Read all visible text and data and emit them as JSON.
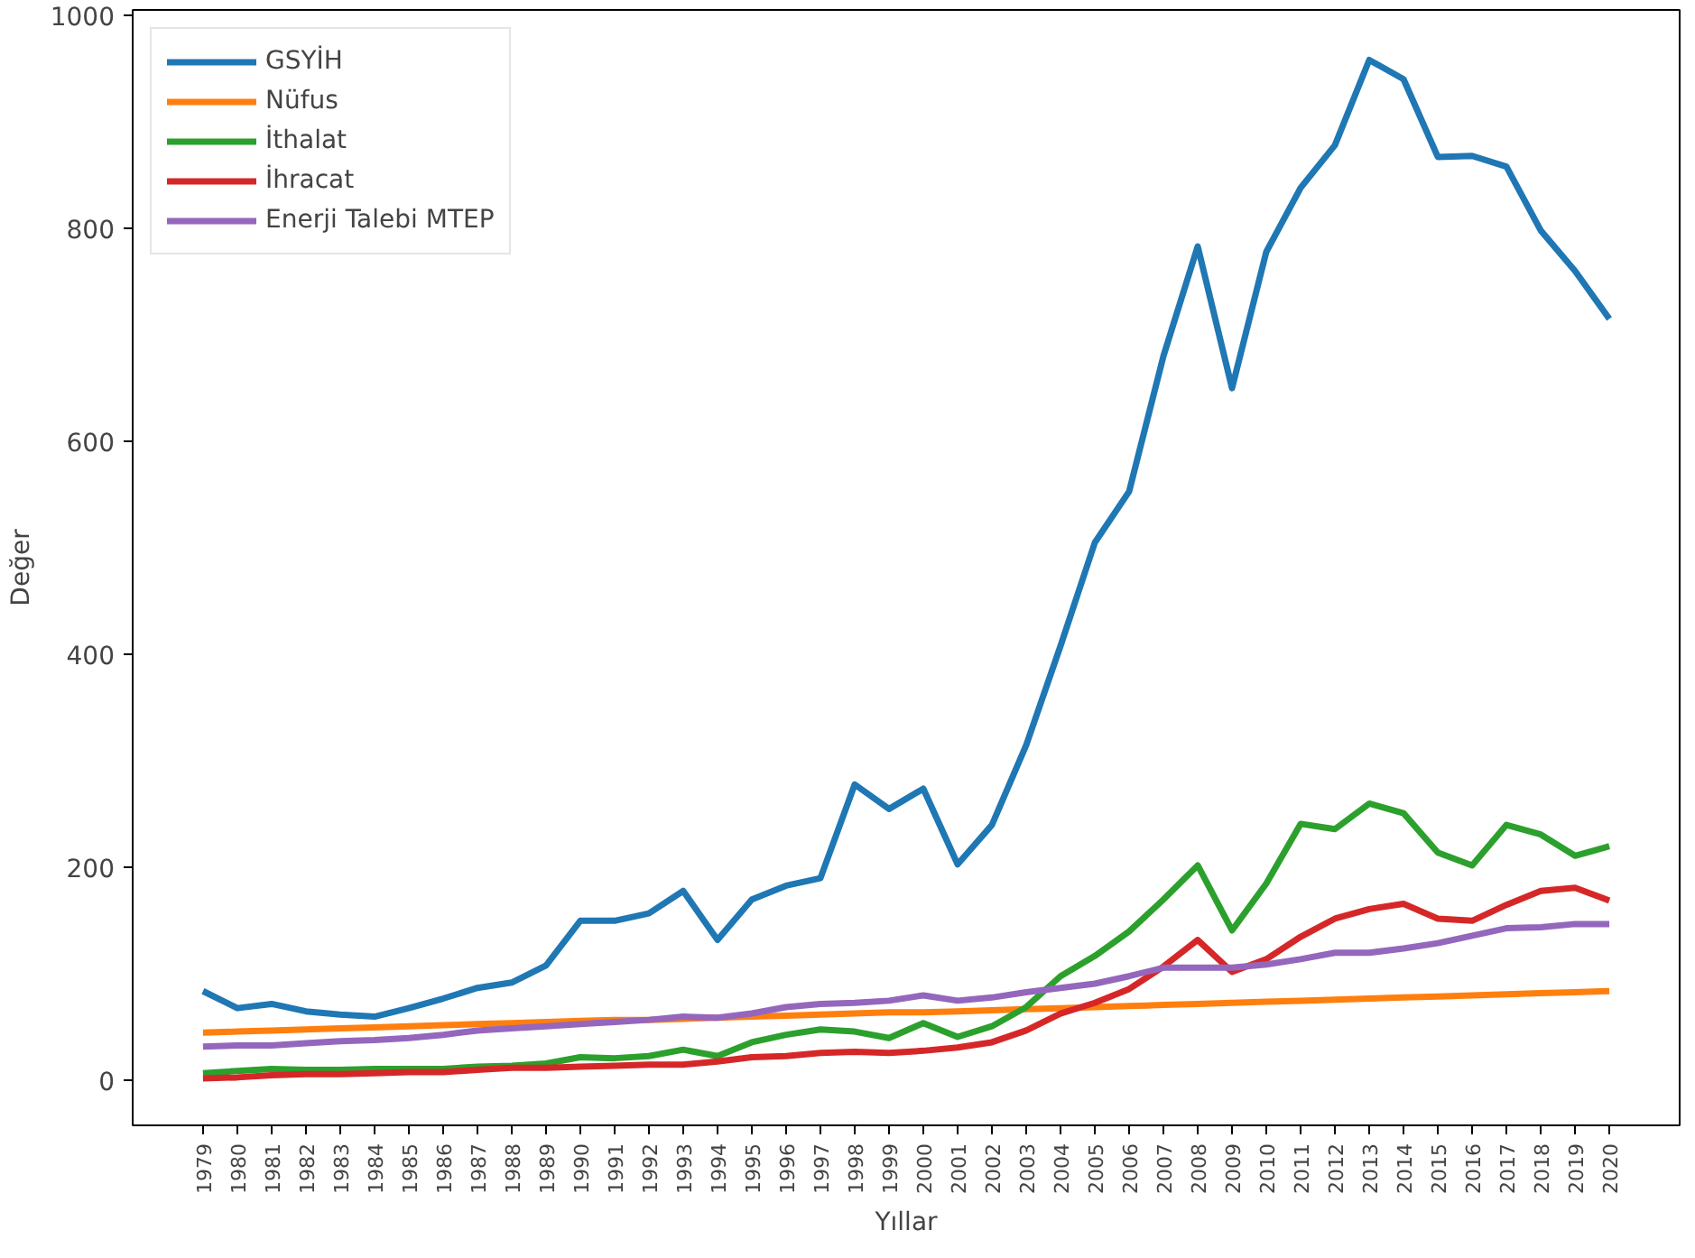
{
  "chart_data": {
    "type": "line",
    "xlabel": "Yıllar",
    "ylabel": "Değer",
    "categories": [
      "1979",
      "1980",
      "1981",
      "1982",
      "1983",
      "1984",
      "1985",
      "1986",
      "1987",
      "1988",
      "1989",
      "1990",
      "1991",
      "1992",
      "1993",
      "1994",
      "1995",
      "1996",
      "1997",
      "1998",
      "1999",
      "2000",
      "2001",
      "2002",
      "2003",
      "2004",
      "2005",
      "2006",
      "2007",
      "2008",
      "2009",
      "2010",
      "2011",
      "2012",
      "2013",
      "2014",
      "2015",
      "2016",
      "2017",
      "2018",
      "2019",
      "2020"
    ],
    "ylim": [
      -42,
      1005
    ],
    "yticks": [
      0,
      200,
      400,
      600,
      800,
      1000
    ],
    "grid": false,
    "legend": "top left",
    "marker": "none",
    "line_style": "solid",
    "series": [
      {
        "name": "GSYİH",
        "color": "#1f77b4",
        "values": [
          84,
          68,
          72,
          65,
          62,
          60,
          68,
          77,
          87,
          92,
          108,
          150,
          150,
          157,
          178,
          132,
          170,
          183,
          190,
          278,
          255,
          274,
          203,
          240,
          315,
          408,
          505,
          553,
          680,
          783,
          650,
          778,
          838,
          878,
          958,
          940,
          867,
          868,
          858,
          798,
          760,
          715
        ]
      },
      {
        "name": "Nüfus",
        "color": "#ff7f0e",
        "values": [
          45,
          46,
          47,
          48,
          49,
          50,
          51,
          52,
          53,
          54,
          55,
          56,
          57,
          57,
          58,
          59,
          60,
          61,
          62,
          63,
          64,
          64,
          65,
          66,
          67,
          68,
          69,
          70,
          71,
          72,
          73,
          74,
          75,
          76,
          77,
          78,
          79,
          80,
          81,
          82,
          83,
          84
        ]
      },
      {
        "name": "İthalat",
        "color": "#2ca02c",
        "values": [
          7,
          9,
          11,
          10,
          10,
          11,
          11,
          11,
          13,
          14,
          16,
          22,
          21,
          23,
          29,
          23,
          36,
          43,
          48,
          46,
          40,
          54,
          41,
          51,
          69,
          98,
          117,
          140,
          170,
          202,
          141,
          185,
          241,
          236,
          260,
          251,
          214,
          202,
          240,
          231,
          211,
          220
        ]
      },
      {
        "name": "İhracat",
        "color": "#d62728",
        "values": [
          2,
          3,
          5,
          6,
          6,
          7,
          8,
          8,
          10,
          12,
          12,
          13,
          14,
          15,
          15,
          18,
          22,
          23,
          26,
          27,
          26,
          28,
          31,
          36,
          47,
          63,
          73,
          86,
          107,
          132,
          102,
          114,
          135,
          152,
          161,
          166,
          152,
          150,
          165,
          178,
          181,
          169
        ]
      },
      {
        "name": "Enerji Talebi MTEP",
        "color": "#9467bd",
        "values": [
          32,
          33,
          33,
          35,
          37,
          38,
          40,
          43,
          47,
          49,
          51,
          53,
          55,
          57,
          60,
          59,
          63,
          69,
          72,
          73,
          75,
          80,
          75,
          78,
          83,
          87,
          91,
          98,
          106,
          106,
          106,
          109,
          114,
          120,
          120,
          124,
          129,
          136,
          143,
          144,
          147,
          147
        ]
      }
    ]
  }
}
